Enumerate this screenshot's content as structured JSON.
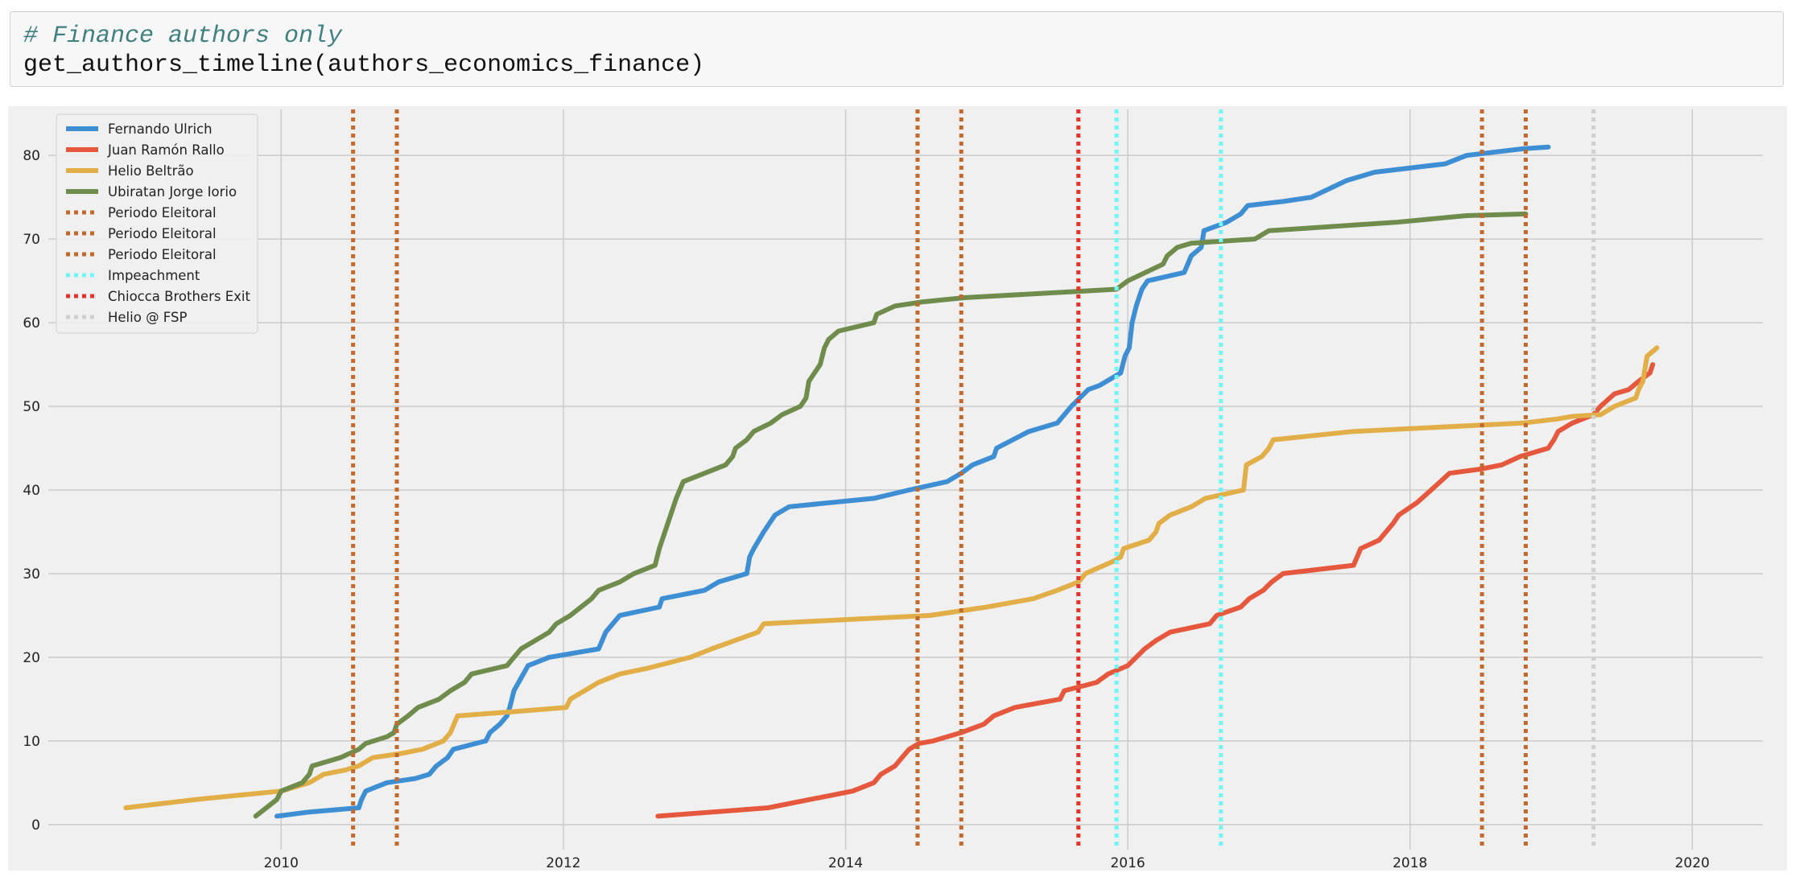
{
  "cell": {
    "comment": "# Finance authors only",
    "code": "get_authors_timeline(authors_economics_finance)"
  },
  "chart_data": {
    "type": "line",
    "title": "",
    "xlabel": "",
    "ylabel": "",
    "xlim": [
      2008.35,
      2020.5
    ],
    "ylim": [
      -3,
      85.5
    ],
    "xticks": [
      2010,
      2012,
      2014,
      2016,
      2018,
      2020
    ],
    "yticks": [
      0,
      10,
      20,
      30,
      40,
      50,
      60,
      70,
      80
    ],
    "grid": true,
    "legend_position": "top-left",
    "background": "#f0f0f0",
    "series": [
      {
        "name": "Fernando Ulrich",
        "color": "#3e8ed4",
        "points": [
          [
            2009.97,
            1
          ],
          [
            2010.2,
            1.5
          ],
          [
            2010.55,
            2
          ],
          [
            2010.57,
            3
          ],
          [
            2010.6,
            4
          ],
          [
            2010.75,
            5
          ],
          [
            2010.95,
            5.5
          ],
          [
            2011.05,
            6
          ],
          [
            2011.1,
            7
          ],
          [
            2011.18,
            8
          ],
          [
            2011.22,
            9
          ],
          [
            2011.45,
            10
          ],
          [
            2011.48,
            11
          ],
          [
            2011.55,
            12
          ],
          [
            2011.6,
            13
          ],
          [
            2011.62,
            14
          ],
          [
            2011.65,
            16
          ],
          [
            2011.75,
            19
          ],
          [
            2011.9,
            20
          ],
          [
            2012.25,
            21
          ],
          [
            2012.3,
            23
          ],
          [
            2012.35,
            24
          ],
          [
            2012.4,
            25
          ],
          [
            2012.68,
            26
          ],
          [
            2012.7,
            27
          ],
          [
            2013.0,
            28
          ],
          [
            2013.1,
            29
          ],
          [
            2013.3,
            30
          ],
          [
            2013.32,
            32
          ],
          [
            2013.35,
            33
          ],
          [
            2013.42,
            35
          ],
          [
            2013.5,
            37
          ],
          [
            2013.6,
            38
          ],
          [
            2014.2,
            39
          ],
          [
            2014.45,
            40
          ],
          [
            2014.72,
            41
          ],
          [
            2014.82,
            42
          ],
          [
            2014.9,
            43
          ],
          [
            2015.05,
            44
          ],
          [
            2015.07,
            45
          ],
          [
            2015.3,
            47
          ],
          [
            2015.5,
            48
          ],
          [
            2015.6,
            50
          ],
          [
            2015.72,
            52
          ],
          [
            2015.8,
            52.5
          ],
          [
            2015.95,
            54
          ],
          [
            2015.98,
            56
          ],
          [
            2016.01,
            57
          ],
          [
            2016.03,
            60
          ],
          [
            2016.06,
            62
          ],
          [
            2016.1,
            64
          ],
          [
            2016.14,
            65
          ],
          [
            2016.4,
            66
          ],
          [
            2016.45,
            68
          ],
          [
            2016.52,
            69
          ],
          [
            2016.54,
            71
          ],
          [
            2016.7,
            72
          ],
          [
            2016.8,
            73
          ],
          [
            2016.85,
            74
          ],
          [
            2017.1,
            74.5
          ],
          [
            2017.3,
            75
          ],
          [
            2017.55,
            77
          ],
          [
            2017.75,
            78
          ],
          [
            2018.25,
            79
          ],
          [
            2018.4,
            80
          ],
          [
            2018.8,
            80.8
          ],
          [
            2018.98,
            81
          ]
        ]
      },
      {
        "name": "Juan Ramón Rallo",
        "color": "#e5583e",
        "points": [
          [
            2012.67,
            1
          ],
          [
            2013.45,
            2
          ],
          [
            2013.75,
            3
          ],
          [
            2014.05,
            4
          ],
          [
            2014.2,
            5
          ],
          [
            2014.25,
            6
          ],
          [
            2014.35,
            7
          ],
          [
            2014.4,
            8
          ],
          [
            2014.45,
            9
          ],
          [
            2014.52,
            9.7
          ],
          [
            2014.62,
            10
          ],
          [
            2014.82,
            11
          ],
          [
            2014.98,
            12
          ],
          [
            2015.05,
            13
          ],
          [
            2015.2,
            14
          ],
          [
            2015.52,
            15
          ],
          [
            2015.55,
            16
          ],
          [
            2015.78,
            17
          ],
          [
            2015.86,
            18
          ],
          [
            2016.0,
            19
          ],
          [
            2016.12,
            21
          ],
          [
            2016.2,
            22
          ],
          [
            2016.3,
            23
          ],
          [
            2016.58,
            24
          ],
          [
            2016.63,
            25
          ],
          [
            2016.8,
            26
          ],
          [
            2016.86,
            27
          ],
          [
            2016.96,
            28
          ],
          [
            2017.02,
            29
          ],
          [
            2017.1,
            30
          ],
          [
            2017.6,
            31
          ],
          [
            2017.65,
            33
          ],
          [
            2017.78,
            34
          ],
          [
            2017.88,
            36
          ],
          [
            2017.92,
            37
          ],
          [
            2018.05,
            38.5
          ],
          [
            2018.15,
            40
          ],
          [
            2018.28,
            42
          ],
          [
            2018.5,
            42.5
          ],
          [
            2018.65,
            43
          ],
          [
            2018.78,
            44
          ],
          [
            2018.98,
            45
          ],
          [
            2019.02,
            46
          ],
          [
            2019.05,
            47
          ],
          [
            2019.15,
            48
          ],
          [
            2019.3,
            49
          ],
          [
            2019.35,
            50
          ],
          [
            2019.45,
            51.5
          ],
          [
            2019.55,
            52
          ],
          [
            2019.62,
            53
          ],
          [
            2019.7,
            54
          ],
          [
            2019.72,
            55
          ]
        ]
      },
      {
        "name": "Helio Beltrão",
        "color": "#e2ae48",
        "points": [
          [
            2008.9,
            2
          ],
          [
            2009.4,
            3
          ],
          [
            2009.7,
            3.5
          ],
          [
            2010.0,
            4
          ],
          [
            2010.2,
            5
          ],
          [
            2010.3,
            6
          ],
          [
            2010.45,
            6.5
          ],
          [
            2010.55,
            7
          ],
          [
            2010.65,
            8
          ],
          [
            2010.85,
            8.5
          ],
          [
            2011.0,
            9
          ],
          [
            2011.15,
            10
          ],
          [
            2011.2,
            11
          ],
          [
            2011.25,
            13
          ],
          [
            2011.65,
            13.5
          ],
          [
            2012.02,
            14
          ],
          [
            2012.05,
            15
          ],
          [
            2012.15,
            16
          ],
          [
            2012.25,
            17
          ],
          [
            2012.4,
            18
          ],
          [
            2012.6,
            18.7
          ],
          [
            2012.9,
            20
          ],
          [
            2013.05,
            21
          ],
          [
            2013.38,
            23
          ],
          [
            2013.42,
            24
          ],
          [
            2014.0,
            24.5
          ],
          [
            2014.6,
            25
          ],
          [
            2015.0,
            26
          ],
          [
            2015.33,
            27
          ],
          [
            2015.5,
            28
          ],
          [
            2015.65,
            29
          ],
          [
            2015.7,
            30
          ],
          [
            2015.9,
            31.5
          ],
          [
            2015.95,
            32
          ],
          [
            2015.97,
            33
          ],
          [
            2016.15,
            34
          ],
          [
            2016.2,
            35
          ],
          [
            2016.22,
            36
          ],
          [
            2016.3,
            37
          ],
          [
            2016.45,
            38
          ],
          [
            2016.55,
            39
          ],
          [
            2016.82,
            40
          ],
          [
            2016.84,
            43
          ],
          [
            2016.95,
            44
          ],
          [
            2017.0,
            45
          ],
          [
            2017.03,
            46
          ],
          [
            2017.6,
            47
          ],
          [
            2018.8,
            48
          ],
          [
            2019.05,
            48.5
          ],
          [
            2019.15,
            48.8
          ],
          [
            2019.35,
            49
          ],
          [
            2019.45,
            50
          ],
          [
            2019.6,
            51
          ],
          [
            2019.62,
            52
          ],
          [
            2019.65,
            53
          ],
          [
            2019.68,
            56
          ],
          [
            2019.75,
            57
          ]
        ]
      },
      {
        "name": "Ubiratan Jorge Iorio",
        "color": "#6f8c4d",
        "points": [
          [
            2009.82,
            1
          ],
          [
            2009.97,
            3
          ],
          [
            2010.0,
            4
          ],
          [
            2010.15,
            5
          ],
          [
            2010.2,
            6
          ],
          [
            2010.22,
            7
          ],
          [
            2010.42,
            8
          ],
          [
            2010.55,
            9
          ],
          [
            2010.6,
            9.7
          ],
          [
            2010.75,
            10.5
          ],
          [
            2010.8,
            11
          ],
          [
            2010.82,
            12
          ],
          [
            2010.9,
            13
          ],
          [
            2010.97,
            14
          ],
          [
            2011.12,
            15
          ],
          [
            2011.2,
            16
          ],
          [
            2011.3,
            17
          ],
          [
            2011.35,
            18
          ],
          [
            2011.6,
            19
          ],
          [
            2011.7,
            21
          ],
          [
            2011.85,
            22.5
          ],
          [
            2011.9,
            23
          ],
          [
            2011.95,
            24
          ],
          [
            2012.05,
            25
          ],
          [
            2012.2,
            27
          ],
          [
            2012.25,
            28
          ],
          [
            2012.4,
            29
          ],
          [
            2012.5,
            30
          ],
          [
            2012.65,
            31
          ],
          [
            2012.68,
            33
          ],
          [
            2012.72,
            35
          ],
          [
            2012.8,
            39
          ],
          [
            2012.85,
            41
          ],
          [
            2013.15,
            43
          ],
          [
            2013.2,
            44
          ],
          [
            2013.22,
            45
          ],
          [
            2013.3,
            46
          ],
          [
            2013.35,
            47
          ],
          [
            2013.47,
            48
          ],
          [
            2013.55,
            49
          ],
          [
            2013.68,
            50
          ],
          [
            2013.72,
            51
          ],
          [
            2013.74,
            53
          ],
          [
            2013.78,
            54
          ],
          [
            2013.82,
            55
          ],
          [
            2013.85,
            57
          ],
          [
            2013.88,
            58
          ],
          [
            2013.95,
            59
          ],
          [
            2014.2,
            60
          ],
          [
            2014.22,
            61
          ],
          [
            2014.35,
            62
          ],
          [
            2014.55,
            62.5
          ],
          [
            2014.85,
            63
          ],
          [
            2015.92,
            64
          ],
          [
            2016.0,
            65
          ],
          [
            2016.25,
            67
          ],
          [
            2016.28,
            68
          ],
          [
            2016.35,
            69
          ],
          [
            2016.45,
            69.5
          ],
          [
            2016.9,
            70
          ],
          [
            2017.0,
            71
          ],
          [
            2017.9,
            72
          ],
          [
            2018.4,
            72.8
          ],
          [
            2018.82,
            73
          ]
        ]
      }
    ],
    "vlines": [
      {
        "name": "Periodo Eleitoral",
        "color": "#c3692e",
        "x": [
          2010.51,
          2010.82
        ]
      },
      {
        "name": "Periodo Eleitoral",
        "color": "#c3692e",
        "x": [
          2014.51,
          2014.82
        ]
      },
      {
        "name": "Periodo Eleitoral",
        "color": "#c3692e",
        "x": [
          2018.51,
          2018.82
        ]
      },
      {
        "name": "Impeachment",
        "color": "#6ff6f8",
        "x": [
          2015.92,
          2016.66
        ]
      },
      {
        "name": "Chiocca Brothers Exit",
        "color": "#e8322c",
        "x": [
          2015.65
        ]
      },
      {
        "name": "Helio @ FSP",
        "color": "#cfcfcf",
        "x": [
          2019.3
        ]
      }
    ]
  }
}
